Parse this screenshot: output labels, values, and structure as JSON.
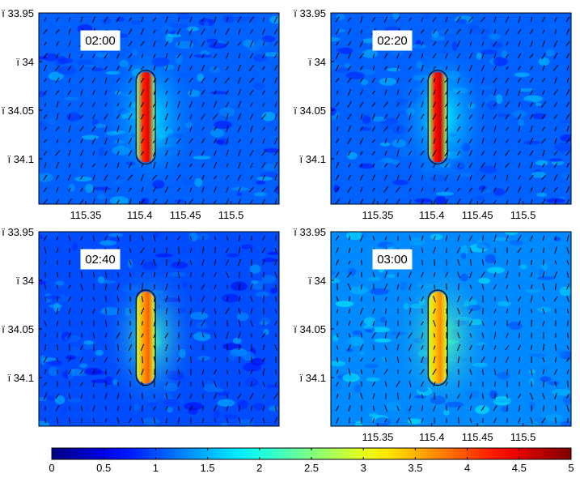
{
  "chart_data": {
    "type": "heatmap",
    "panels": [
      {
        "time_label": "02:00",
        "hotspot": {
          "level": 4.2
        },
        "background_level": 1.1,
        "plume_level": 1.8,
        "y_ticks": [
          "ï 33.95",
          "ï 34",
          "ï 34.05",
          "ï 34.1"
        ],
        "x_ticks": [
          "115.35",
          "115.4",
          "115.45",
          "115.5"
        ],
        "show_x_ticks": true
      },
      {
        "time_label": "02:20",
        "hotspot": {
          "level": 4.3
        },
        "background_level": 1.1,
        "plume_level": 1.9,
        "y_ticks": [
          "ï 33.95",
          "ï 34",
          "ï 34.05",
          "ï 34.1"
        ],
        "x_ticks": [
          "115.35",
          "115.4",
          "115.45",
          "115.5"
        ],
        "show_x_ticks": true
      },
      {
        "time_label": "02:40",
        "hotspot": {
          "level": 3.6
        },
        "background_level": 1.0,
        "plume_level": 2.2,
        "y_ticks": [
          "ï 33.95",
          "ï 34",
          "ï 34.05",
          "ï 34.1"
        ],
        "x_ticks": [],
        "show_x_ticks": false
      },
      {
        "time_label": "03:00",
        "hotspot": {
          "level": 3.4
        },
        "background_level": 1.3,
        "plume_level": 2.3,
        "y_ticks": [
          "ï 33.95",
          "ï 34",
          "ï 34.05",
          "ï 34.1"
        ],
        "x_ticks": [
          "115.35",
          "115.4",
          "115.45",
          "115.5"
        ],
        "show_x_ticks": true
      }
    ],
    "y_values": [
      33.95,
      34.0,
      34.05,
      34.1
    ],
    "x_values": [
      115.35,
      115.4,
      115.45,
      115.5
    ],
    "colorbar": {
      "min": 0,
      "max": 5,
      "ticks": [
        "0",
        "0.5",
        "1",
        "1.5",
        "2",
        "2.5",
        "3",
        "3.5",
        "4",
        "4.5",
        "5"
      ],
      "colormap": "jet"
    },
    "colors": {
      "background_blue": "#1a45d8",
      "outline": "#000000"
    }
  }
}
